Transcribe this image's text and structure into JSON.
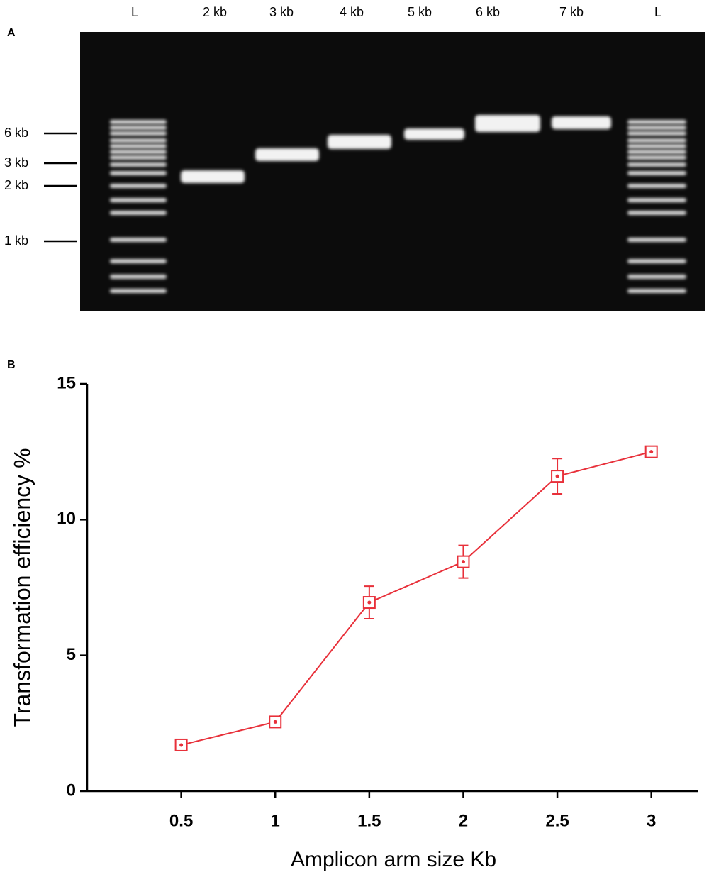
{
  "panel_a": {
    "label": "A",
    "lanes": [
      "L",
      "2 kb",
      "3 kb",
      "4 kb",
      "5 kb",
      "6 kb",
      "7 kb",
      "L"
    ],
    "markers": [
      "6 kb",
      "3 kb",
      "2 kb",
      "1 kb"
    ]
  },
  "chart_data": {
    "type": "line",
    "panel_label": "B",
    "x_label": "Amplicon arm size Kb",
    "y_label": "Transformation efficiency %",
    "x": [
      0.5,
      1,
      1.5,
      2,
      2.5,
      3
    ],
    "values": [
      1.7,
      2.55,
      6.95,
      8.45,
      11.6,
      12.5
    ],
    "errors": [
      0.1,
      0.1,
      0.6,
      0.6,
      0.65,
      0.1
    ],
    "color": "#e8303a",
    "xlim": [
      0,
      3.25
    ],
    "xticks": [
      0.5,
      1,
      1.5,
      2,
      2.5,
      3
    ],
    "ylim": [
      0,
      15
    ],
    "yticks": [
      0,
      5,
      10,
      15
    ]
  }
}
